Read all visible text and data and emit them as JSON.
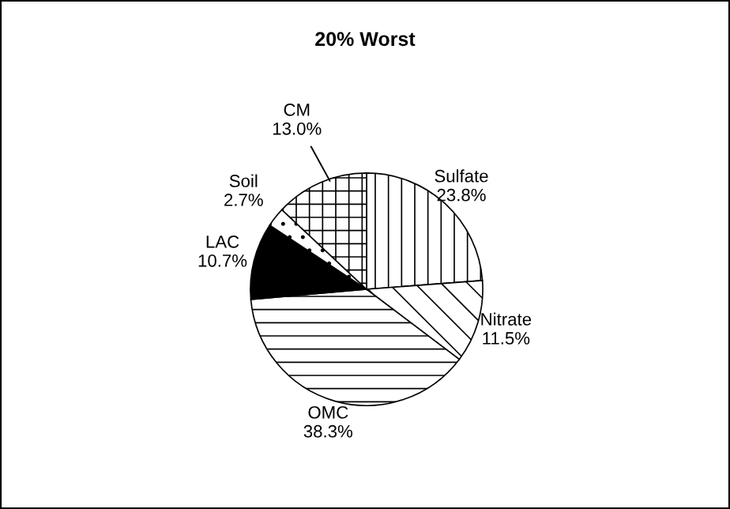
{
  "chart_data": {
    "type": "pie",
    "title": "20% Worst",
    "categories": [
      "Sulfate",
      "Nitrate",
      "OMC",
      "LAC",
      "Soil",
      "CM"
    ],
    "values": [
      23.8,
      11.5,
      38.3,
      10.7,
      2.7,
      13.0
    ],
    "value_labels": [
      "23.8%",
      "11.5%",
      "38.3%",
      "10.7%",
      "2.7%",
      "13.0%"
    ],
    "colors": [
      "#ffffff",
      "#ffffff",
      "#ffffff",
      "#000000",
      "#ffffff",
      "#ffffff"
    ],
    "legend": false
  }
}
